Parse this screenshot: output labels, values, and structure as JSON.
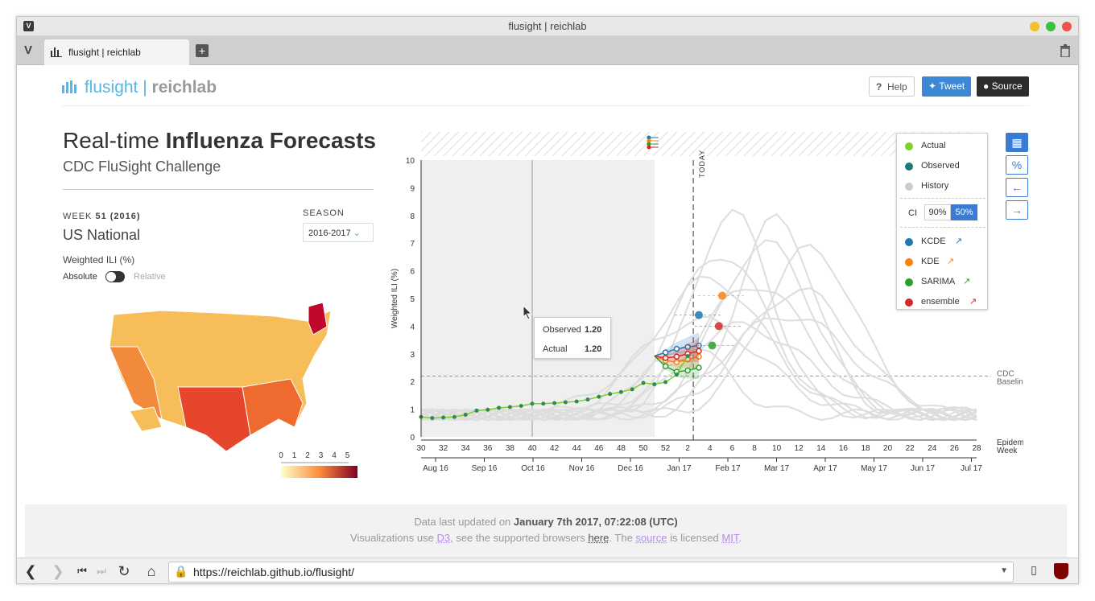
{
  "window": {
    "title": "flusight | reichlab"
  },
  "tab": {
    "label": "flusight | reichlab"
  },
  "address": {
    "url": "https://reichlab.github.io/flusight/"
  },
  "header": {
    "logo_main": "flusight |",
    "logo_bold": "reichlab",
    "help": "Help",
    "tweet": "Tweet",
    "source": "Source"
  },
  "intro": {
    "title_light": "Real-time",
    "title_bold": "Influenza Forecasts",
    "subtitle": "CDC FluSight Challenge"
  },
  "panel": {
    "week_label": "WEEK",
    "week_value": "51 (2016)",
    "region": "US National",
    "season_label": "SEASON",
    "season_value": "2016-2017",
    "metric": "Weighted ILI (%)",
    "toggle_absolute": "Absolute",
    "toggle_relative": "Relative",
    "scale_ticks": [
      "0",
      "1",
      "2",
      "3",
      "4",
      "5"
    ]
  },
  "legend": {
    "actual": "Actual",
    "observed": "Observed",
    "history": "History",
    "ci": "CI",
    "ci90": "90%",
    "ci50": "50%",
    "models": [
      "KCDE",
      "KDE",
      "SARIMA",
      "ensemble"
    ]
  },
  "tooltip": {
    "observed_label": "Observed",
    "observed_value": "1.20",
    "actual_label": "Actual",
    "actual_value": "1.20"
  },
  "chart_data": {
    "type": "line",
    "ylabel": "Weighted ILI (%)",
    "ylim": [
      0,
      10
    ],
    "yticks": [
      "0",
      "1",
      "2",
      "3",
      "4",
      "5",
      "6",
      "7",
      "8",
      "9",
      "10"
    ],
    "xticks": [
      "30",
      "32",
      "34",
      "36",
      "38",
      "40",
      "42",
      "44",
      "46",
      "48",
      "50",
      "52",
      "2",
      "4",
      "6",
      "8",
      "10",
      "12",
      "14",
      "16",
      "18",
      "20",
      "22",
      "24",
      "26",
      "28"
    ],
    "xlabel": "Epidemic Week",
    "month_ticks": [
      "Aug 16",
      "Sep 16",
      "Oct 16",
      "Nov 16",
      "Dec 16",
      "Jan 17",
      "Feb 17",
      "Mar 17",
      "Apr 17",
      "May 17",
      "Jun 17",
      "Jul 17"
    ],
    "today_label": "TODAY",
    "baseline_label": [
      "CDC",
      "Baseline"
    ],
    "baseline": 2.2,
    "actual": [
      0.72,
      0.68,
      0.7,
      0.72,
      0.8,
      0.95,
      0.98,
      1.05,
      1.08,
      1.12,
      1.2,
      1.2,
      1.22,
      1.25,
      1.28,
      1.35,
      1.45,
      1.55,
      1.62,
      1.72,
      1.95,
      1.9,
      1.98,
      2.25,
      2.92
    ],
    "forecasts": [
      {
        "name": "KCDE",
        "color": "#1f77b4",
        "values": [
          2.92,
          3.05,
          3.18,
          3.25,
          3.3
        ],
        "peak": 4.4
      },
      {
        "name": "KDE",
        "color": "#ff7f0e",
        "values": [
          2.92,
          2.75,
          2.7,
          2.8,
          2.9
        ],
        "peak": 5.1
      },
      {
        "name": "SARIMA",
        "color": "#2ca02c",
        "values": [
          2.92,
          2.55,
          2.35,
          2.4,
          2.5
        ],
        "peak": 3.3
      },
      {
        "name": "ensemble",
        "color": "#d62728",
        "values": [
          2.92,
          2.85,
          2.9,
          3.0,
          3.1
        ],
        "peak": 4.0
      }
    ]
  },
  "footer": {
    "line1_a": "Data last updated on",
    "line1_b": "January 7th 2017, 07:22:08 (UTC)",
    "line2_a": "Visualizations use",
    "d3": "D3",
    "line2_b": ", see the supported browsers",
    "here": "here",
    "line2_c": ". The",
    "source": "source",
    "line2_d": "is licensed",
    "mit": "MIT",
    "line2_e": "."
  }
}
